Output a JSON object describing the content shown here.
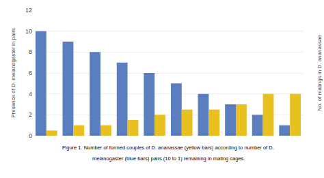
{
  "chart_data": {
    "type": "bar",
    "categories": [
      null,
      null,
      null,
      null,
      null,
      null,
      null,
      null,
      null,
      null
    ],
    "series": [
      {
        "color": "#5B7FBE",
        "values": [
          10,
          9,
          8,
          7,
          6,
          5,
          4,
          3,
          2,
          1
        ]
      },
      {
        "color": "#E8C020",
        "values": [
          0.5,
          1.0,
          1.0,
          1.5,
          2.0,
          2.5,
          2.5,
          3.0,
          4.0,
          4.0
        ]
      }
    ],
    "ylabel": "Presence of D. melanogaster in pairs",
    "y2label": "No. of matings in D. ananassae",
    "ylim": [
      0,
      12
    ],
    "yticks": [
      0,
      2,
      4,
      6,
      8,
      10,
      12
    ],
    "grid": true,
    "tick_labels": "y",
    "annotations": [
      "Figure 1. Number of formed couples of D. ananassae (yellow bars) according to number of D.",
      "melanogaster (blue bars) pairs (10 to 1) remaining in mating cages."
    ]
  }
}
